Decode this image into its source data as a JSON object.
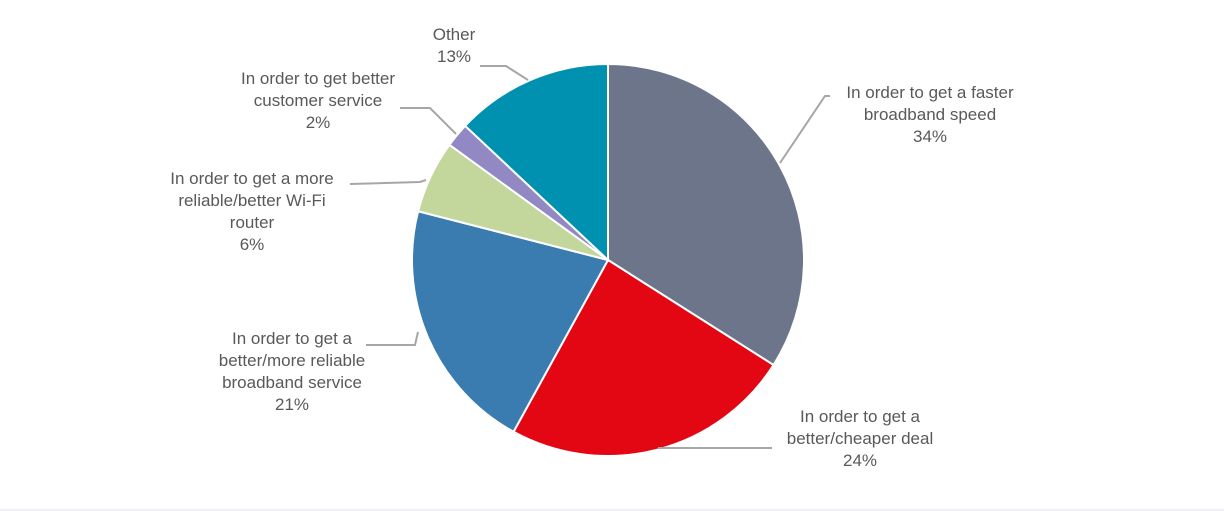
{
  "chart_data": {
    "type": "pie",
    "title": "",
    "slices": [
      {
        "label": "In order to get a faster broadband speed",
        "value": 34,
        "value_label": "34%",
        "color": "#6c758a"
      },
      {
        "label": "In order to get a better/cheaper deal",
        "value": 24,
        "value_label": "24%",
        "color": "#e30613"
      },
      {
        "label": "In order to get a better/more reliable broadband service",
        "value": 21,
        "value_label": "21%",
        "color": "#3a7cb0"
      },
      {
        "label": "In order to get a more reliable/better Wi-Fi router",
        "value": 6,
        "value_label": "6%",
        "color": "#c3d69b"
      },
      {
        "label": "In order to get better customer service",
        "value": 2,
        "value_label": "2%",
        "color": "#9188c4"
      },
      {
        "label": "Other",
        "value": 13,
        "value_label": "13%",
        "color": "#0091b0"
      }
    ],
    "start_angle": "12 o'clock",
    "direction": "clockwise",
    "legend": "none",
    "slice_border_color": "#ffffff"
  }
}
